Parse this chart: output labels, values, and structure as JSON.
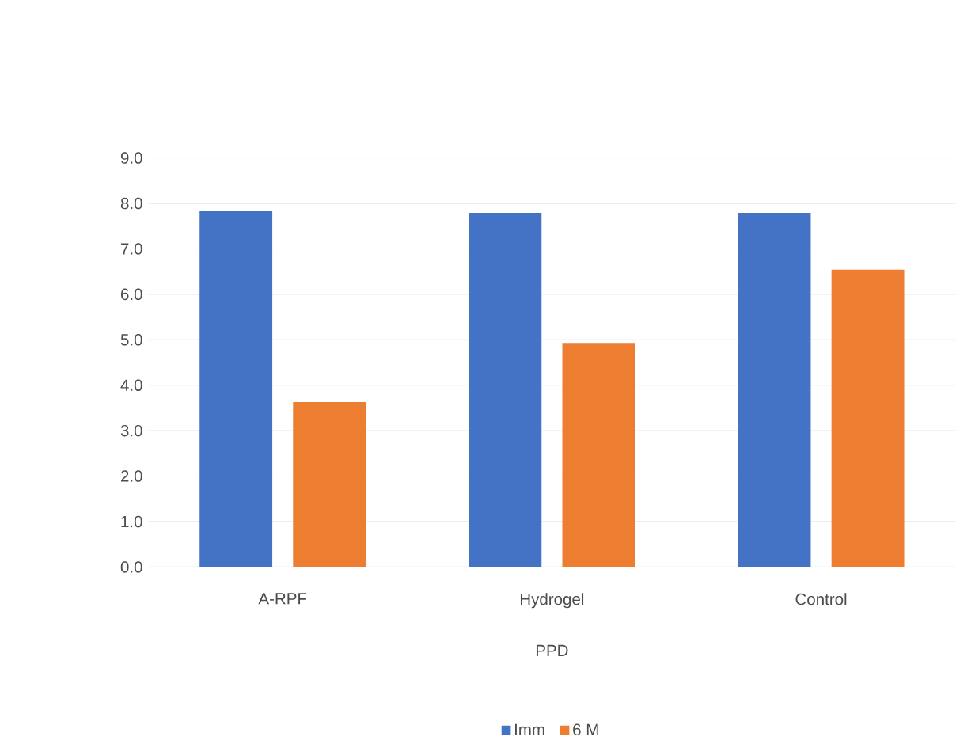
{
  "chart_data": {
    "type": "bar",
    "xlabel": "PPD",
    "categories": [
      "A-RPF",
      "Hydrogel",
      "Control"
    ],
    "series": [
      {
        "name": "Imm",
        "color": "#4472c4",
        "values": [
          7.84,
          7.79,
          7.79
        ]
      },
      {
        "name": "6 M",
        "color": "#ed7d31",
        "values": [
          3.63,
          4.93,
          6.54
        ]
      }
    ],
    "ylim": [
      0,
      9
    ],
    "yticks": [
      {
        "value": 0,
        "label": "0.0"
      },
      {
        "value": 1,
        "label": "1.0"
      },
      {
        "value": 2,
        "label": "2.0"
      },
      {
        "value": 3,
        "label": "3.0"
      },
      {
        "value": 4,
        "label": "4.0"
      },
      {
        "value": 5,
        "label": "5.0"
      },
      {
        "value": 6,
        "label": "6.0"
      },
      {
        "value": 7,
        "label": "7.0"
      },
      {
        "value": 8,
        "label": "8.0"
      },
      {
        "value": 9,
        "label": "9.0"
      }
    ],
    "grid": "y",
    "legend": "bottom"
  }
}
